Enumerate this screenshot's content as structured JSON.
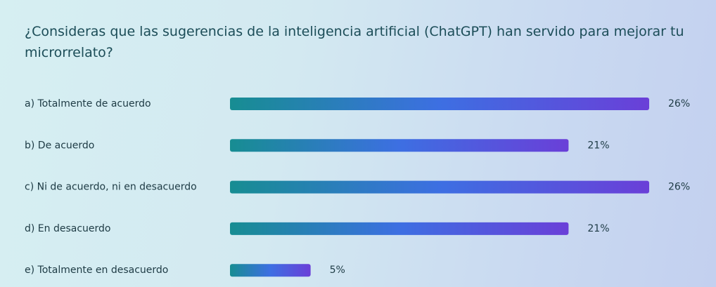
{
  "chart_data": {
    "type": "bar",
    "orientation": "horizontal",
    "title": "¿Consideras que las sugerencias de la inteligencia artificial (ChatGPT) han servido para mejorar tu microrrelato?",
    "categories": [
      "a) Totalmente de acuerdo",
      "b) De acuerdo",
      "c) Ni de acuerdo, ni en desacuerdo",
      "d) En desacuerdo",
      "e) Totalmente en desacuerdo"
    ],
    "values": [
      26,
      21,
      26,
      21,
      5
    ],
    "value_labels": [
      "26%",
      "21%",
      "26%",
      "21%",
      "5%"
    ],
    "colors": [
      "#178d92",
      "#3d6fe2",
      "#6a3fd8"
    ]
  }
}
